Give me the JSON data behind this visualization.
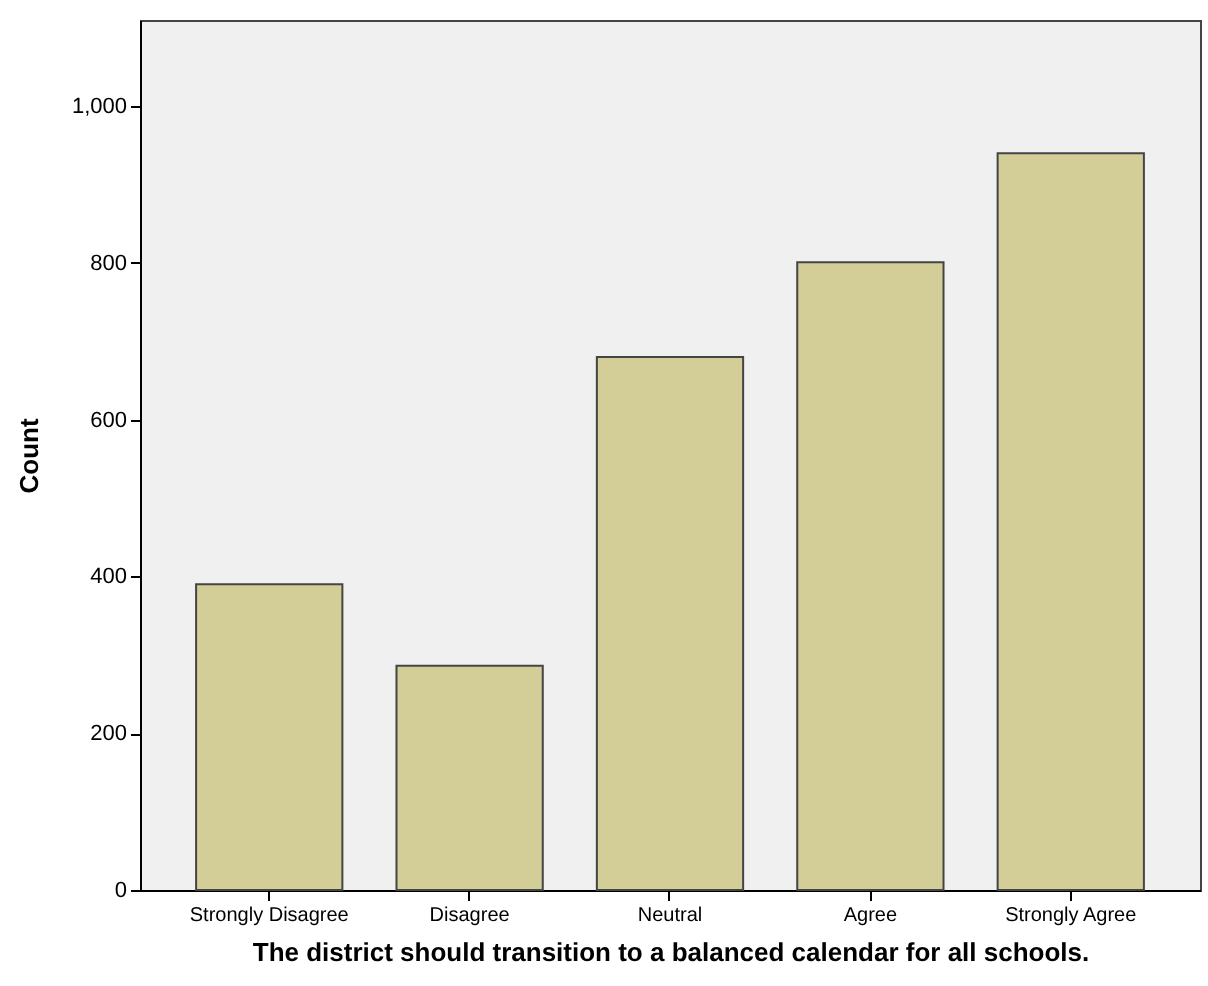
{
  "chart_data": {
    "type": "bar",
    "xlabel": "The district should transition to a balanced calendar for all schools.",
    "ylabel": "Count",
    "categories": [
      "Strongly Disagree",
      "Disagree",
      "Neutral",
      "Agree",
      "Strongly Agree"
    ],
    "values": [
      390,
      286,
      680,
      801,
      940
    ],
    "color": "#d3ce97",
    "ylim": [
      0,
      1110
    ],
    "yticks": [
      {
        "value": 0,
        "label": "0"
      },
      {
        "value": 200,
        "label": "200"
      },
      {
        "value": 400,
        "label": "400"
      },
      {
        "value": 600,
        "label": "600"
      },
      {
        "value": 800,
        "label": "800"
      },
      {
        "value": 1000,
        "label": "1,000"
      }
    ],
    "grid": false
  }
}
